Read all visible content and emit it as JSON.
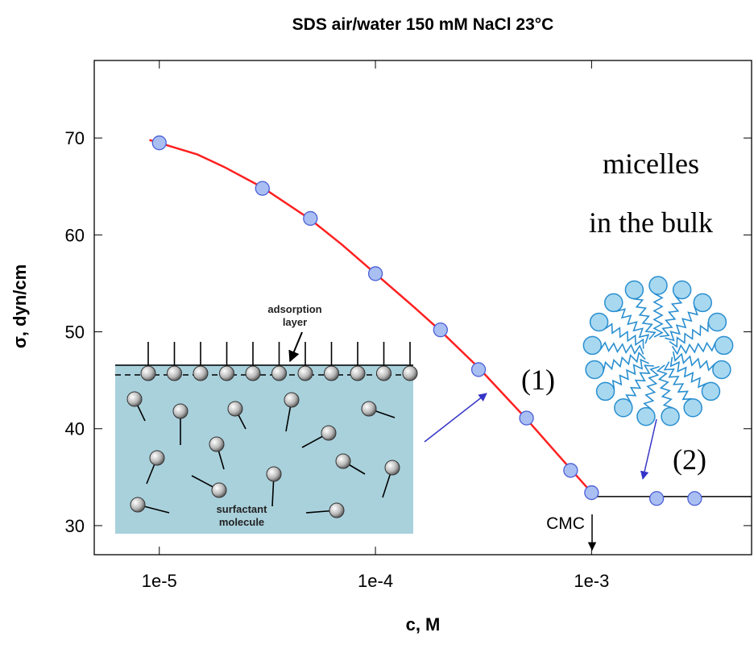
{
  "chart_data": {
    "type": "scatter",
    "title": "SDS air/water 150 mM NaCl 23°C",
    "x_label": "c, M",
    "y_label": "σ, dyn/cm",
    "xscale": "log",
    "xlim": [
      5e-06,
      0.0055
    ],
    "ylim": [
      27,
      78
    ],
    "xticks": [
      {
        "value": 1e-05,
        "label": "1e-5"
      },
      {
        "value": 0.0001,
        "label": "1e-4"
      },
      {
        "value": 0.001,
        "label": "1e-3"
      }
    ],
    "yticks": [
      30,
      40,
      50,
      60,
      70
    ],
    "points": {
      "color": "#a9bff2",
      "edge_color": "#4b5fd6",
      "x": [
        1e-05,
        3e-05,
        5e-05,
        0.0001,
        0.0002,
        0.0003,
        0.0005,
        0.0008,
        0.001,
        0.002,
        0.003
      ],
      "values": [
        69.5,
        64.8,
        61.7,
        56,
        50.2,
        46.1,
        41.1,
        35.7,
        33.4,
        32.8,
        32.8
      ]
    },
    "fit": {
      "color": "#ff2020",
      "x": [
        9e-06,
        1.5e-05,
        2e-05,
        3e-05,
        5e-05,
        7e-05,
        0.0001,
        0.00015,
        0.0002,
        0.0003,
        0.0005,
        0.0007,
        0.001
      ],
      "values": [
        69.8,
        68.3,
        67,
        64.9,
        61.6,
        59,
        56,
        52.6,
        50.1,
        46.3,
        41,
        37.3,
        33.4
      ]
    },
    "plateau": {
      "color": "#000000",
      "x": [
        0.001,
        0.0055
      ],
      "values": [
        33,
        33
      ]
    },
    "annotations": {
      "micelles": "micelles",
      "bulk": "in the bulk",
      "one": "(1)",
      "two": "(2)",
      "cmc": "CMC",
      "adsorption": [
        "adsorption",
        "layer"
      ],
      "molecule": [
        "surfactant",
        "molecule"
      ]
    }
  }
}
